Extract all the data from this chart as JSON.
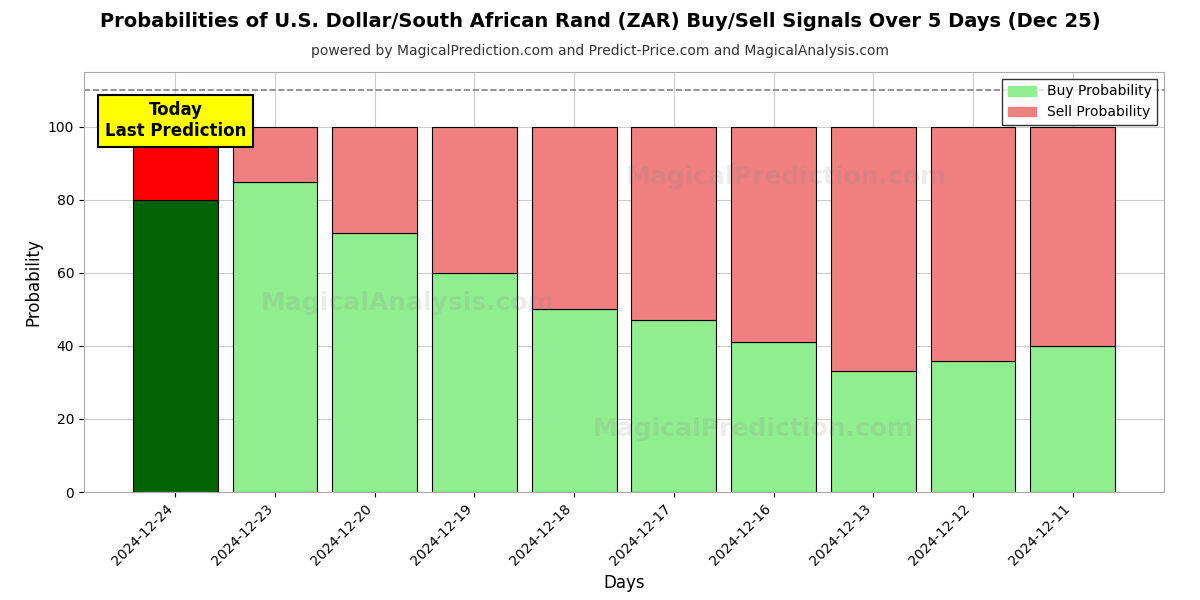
{
  "title": "Probabilities of U.S. Dollar/South African Rand (ZAR) Buy/Sell Signals Over 5 Days (Dec 25)",
  "subtitle": "powered by MagicalPrediction.com and Predict-Price.com and MagicalAnalysis.com",
  "xlabel": "Days",
  "ylabel": "Probability",
  "categories": [
    "2024-12-24",
    "2024-12-23",
    "2024-12-20",
    "2024-12-19",
    "2024-12-18",
    "2024-12-17",
    "2024-12-16",
    "2024-12-13",
    "2024-12-12",
    "2024-12-11"
  ],
  "buy_values": [
    80,
    85,
    71,
    60,
    50,
    47,
    41,
    33,
    36,
    40
  ],
  "sell_values": [
    20,
    15,
    29,
    40,
    50,
    53,
    59,
    67,
    64,
    60
  ],
  "today_buy_color": "#006400",
  "today_sell_color": "#FF0000",
  "buy_color": "#90EE90",
  "sell_color": "#F08080",
  "today_annotation_text": "Today\nLast Prediction",
  "today_annotation_bg": "#FFFF00",
  "legend_buy_label": "Buy Probability",
  "legend_sell_label": "Sell Probability",
  "ylim_max": 115,
  "yticks": [
    0,
    20,
    40,
    60,
    80,
    100
  ],
  "dashed_line_y": 110,
  "background_color": "#ffffff",
  "grid_color": "#cccccc",
  "bar_width": 0.85,
  "title_fontsize": 14,
  "subtitle_fontsize": 10,
  "legend_fontsize": 10,
  "axis_label_fontsize": 12,
  "tick_fontsize": 10
}
